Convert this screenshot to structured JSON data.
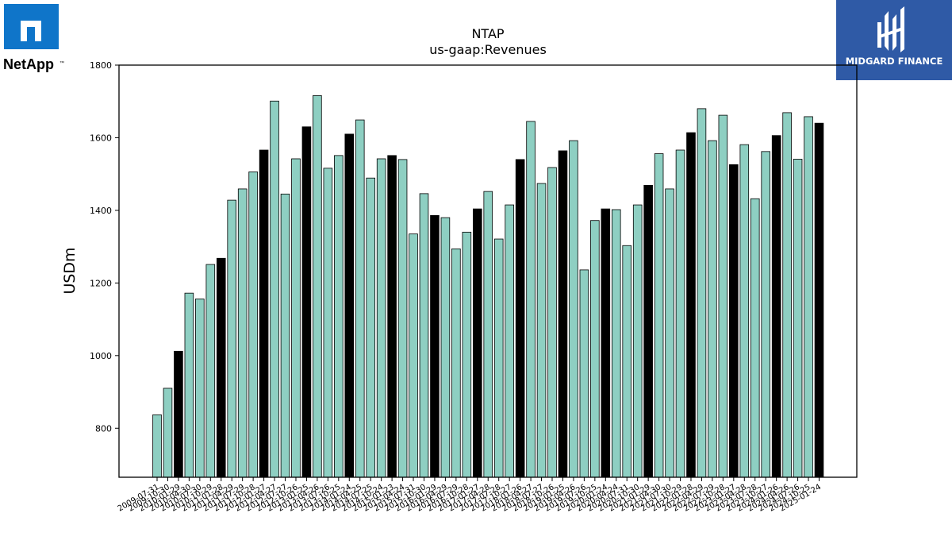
{
  "branding": {
    "left_logo_text": "NetApp",
    "left_logo_trademark": "™",
    "right_logo_text": "MIDGARD FINANCE"
  },
  "colors": {
    "bar_default": "#8ecfc2",
    "bar_highlight": "#000000",
    "logo_blue": "#0f75c9",
    "midgard_bg": "#2f5aa6"
  },
  "chart_data": {
    "type": "bar",
    "title": "NTAP",
    "subtitle": "us-gaap:Revenues",
    "xlabel": "",
    "ylabel": "USDm",
    "ylim": [
      665,
      1800
    ],
    "yticks": [
      800,
      1000,
      1200,
      1400,
      1600,
      1800
    ],
    "grid": false,
    "categories": [
      "2009-07-31",
      "2009-10-30",
      "2010-01-29",
      "2010-04-30",
      "2010-07-30",
      "2010-10-29",
      "2011-01-28",
      "2011-04-29",
      "2011-07-29",
      "2011-10-28",
      "2012-01-27",
      "2012-04-27",
      "2012-07-27",
      "2012-10-26",
      "2013-01-25",
      "2013-04-26",
      "2013-07-26",
      "2013-10-25",
      "2014-01-24",
      "2014-04-25",
      "2014-07-25",
      "2014-10-24",
      "2015-01-23",
      "2015-04-24",
      "2015-07-31",
      "2015-10-30",
      "2016-01-29",
      "2016-04-29",
      "2016-07-29",
      "2016-10-28",
      "2017-01-27",
      "2017-04-28",
      "2017-07-28",
      "2017-10-27",
      "2018-01-26",
      "2018-04-27",
      "2018-07-27",
      "2018-10-26",
      "2019-01-25",
      "2019-04-26",
      "2019-07-26",
      "2019-10-25",
      "2020-01-24",
      "2020-04-24",
      "2020-07-31",
      "2020-10-30",
      "2021-01-29",
      "2021-04-30",
      "2021-07-30",
      "2021-10-29",
      "2022-01-28",
      "2022-04-29",
      "2022-07-29",
      "2022-10-28",
      "2023-01-27",
      "2023-04-28",
      "2023-07-28",
      "2023-10-27",
      "2024-01-26",
      "2024-04-26",
      "2024-07-26",
      "2024-10-25",
      "2025-01-24"
    ],
    "values": [
      837,
      910,
      1012,
      1172,
      1156,
      1251,
      1268,
      1428,
      1459,
      1506,
      1566,
      1701,
      1445,
      1542,
      1630,
      1716,
      1516,
      1551,
      1610,
      1649,
      1489,
      1542,
      1551,
      1540,
      1335,
      1446,
      1386,
      1380,
      1294,
      1340,
      1404,
      1452,
      1321,
      1415,
      1540,
      1645,
      1474,
      1518,
      1564,
      1592,
      1236,
      1372,
      1404,
      1402,
      1303,
      1415,
      1469,
      1556,
      1459,
      1566,
      1614,
      1680,
      1592,
      1662,
      1526,
      1581,
      1432,
      1562,
      1606,
      1669,
      1541,
      1658,
      1640
    ],
    "highlight_indices": [
      2,
      6,
      10,
      14,
      18,
      22,
      26,
      30,
      34,
      38,
      42,
      46,
      50,
      54,
      58,
      62
    ]
  }
}
